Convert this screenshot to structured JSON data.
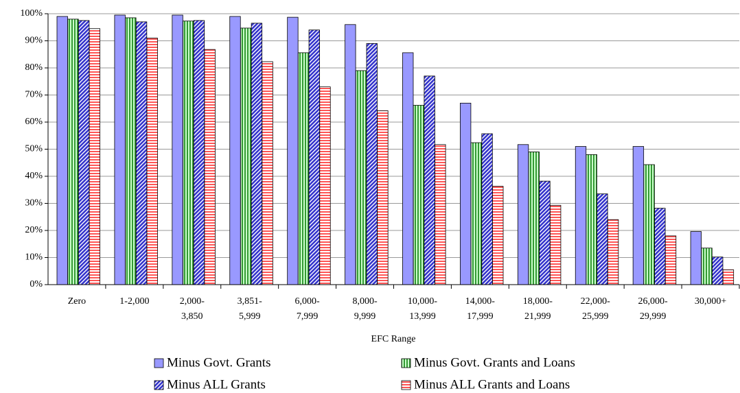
{
  "chart_data": {
    "type": "bar",
    "x_label": "EFC Range",
    "categories": [
      "Zero",
      "1-2,000",
      "2,000-\n3,850",
      "3,851-\n5,999",
      "6,000-\n7,999",
      "8,000-\n9,999",
      "10,000-\n13,999",
      "14,000-\n17,999",
      "18,000-\n21,999",
      "22,000-\n25,999",
      "26,000-\n29,999",
      "30,000+"
    ],
    "series": [
      {
        "name": "Minus Govt. Grants",
        "color": "#9999ff",
        "pattern": "solid",
        "values": [
          99,
          99.5,
          99.5,
          99,
          98.7,
          96,
          85.6,
          67,
          51.7,
          51,
          51,
          19.6
        ]
      },
      {
        "name": "Minus Govt. Grants and Loans",
        "color": "#339933",
        "pattern": "vertical",
        "values": [
          98,
          98.5,
          97.3,
          94.7,
          85.6,
          79,
          66.2,
          52.4,
          49,
          48,
          44.3,
          13.5
        ]
      },
      {
        "name": "Minus ALL Grants",
        "color": "#3333cc",
        "pattern": "diagonal",
        "values": [
          97.5,
          97,
          97.5,
          96.5,
          94,
          89,
          77,
          55.7,
          38.2,
          33.5,
          28.2,
          10.2
        ]
      },
      {
        "name": "Minus ALL Grants and Loans",
        "color": "#ff5555",
        "pattern": "horizontal",
        "values": [
          94.5,
          91,
          86.8,
          82.3,
          73,
          64.2,
          51.7,
          36.3,
          29.3,
          24,
          18,
          5.5
        ]
      }
    ],
    "ylim": [
      0,
      100
    ],
    "yticks": [
      {
        "value": 0,
        "label": "0%"
      },
      {
        "value": 10,
        "label": "10%"
      },
      {
        "value": 20,
        "label": "20%"
      },
      {
        "value": 30,
        "label": "30%"
      },
      {
        "value": 40,
        "label": "40%"
      },
      {
        "value": 50,
        "label": "50%"
      },
      {
        "value": 60,
        "label": "60%"
      },
      {
        "value": 70,
        "label": "70%"
      },
      {
        "value": 80,
        "label": "80%"
      },
      {
        "value": 90,
        "label": "90%"
      },
      {
        "value": 100,
        "label": "100%"
      }
    ],
    "grid": true
  }
}
